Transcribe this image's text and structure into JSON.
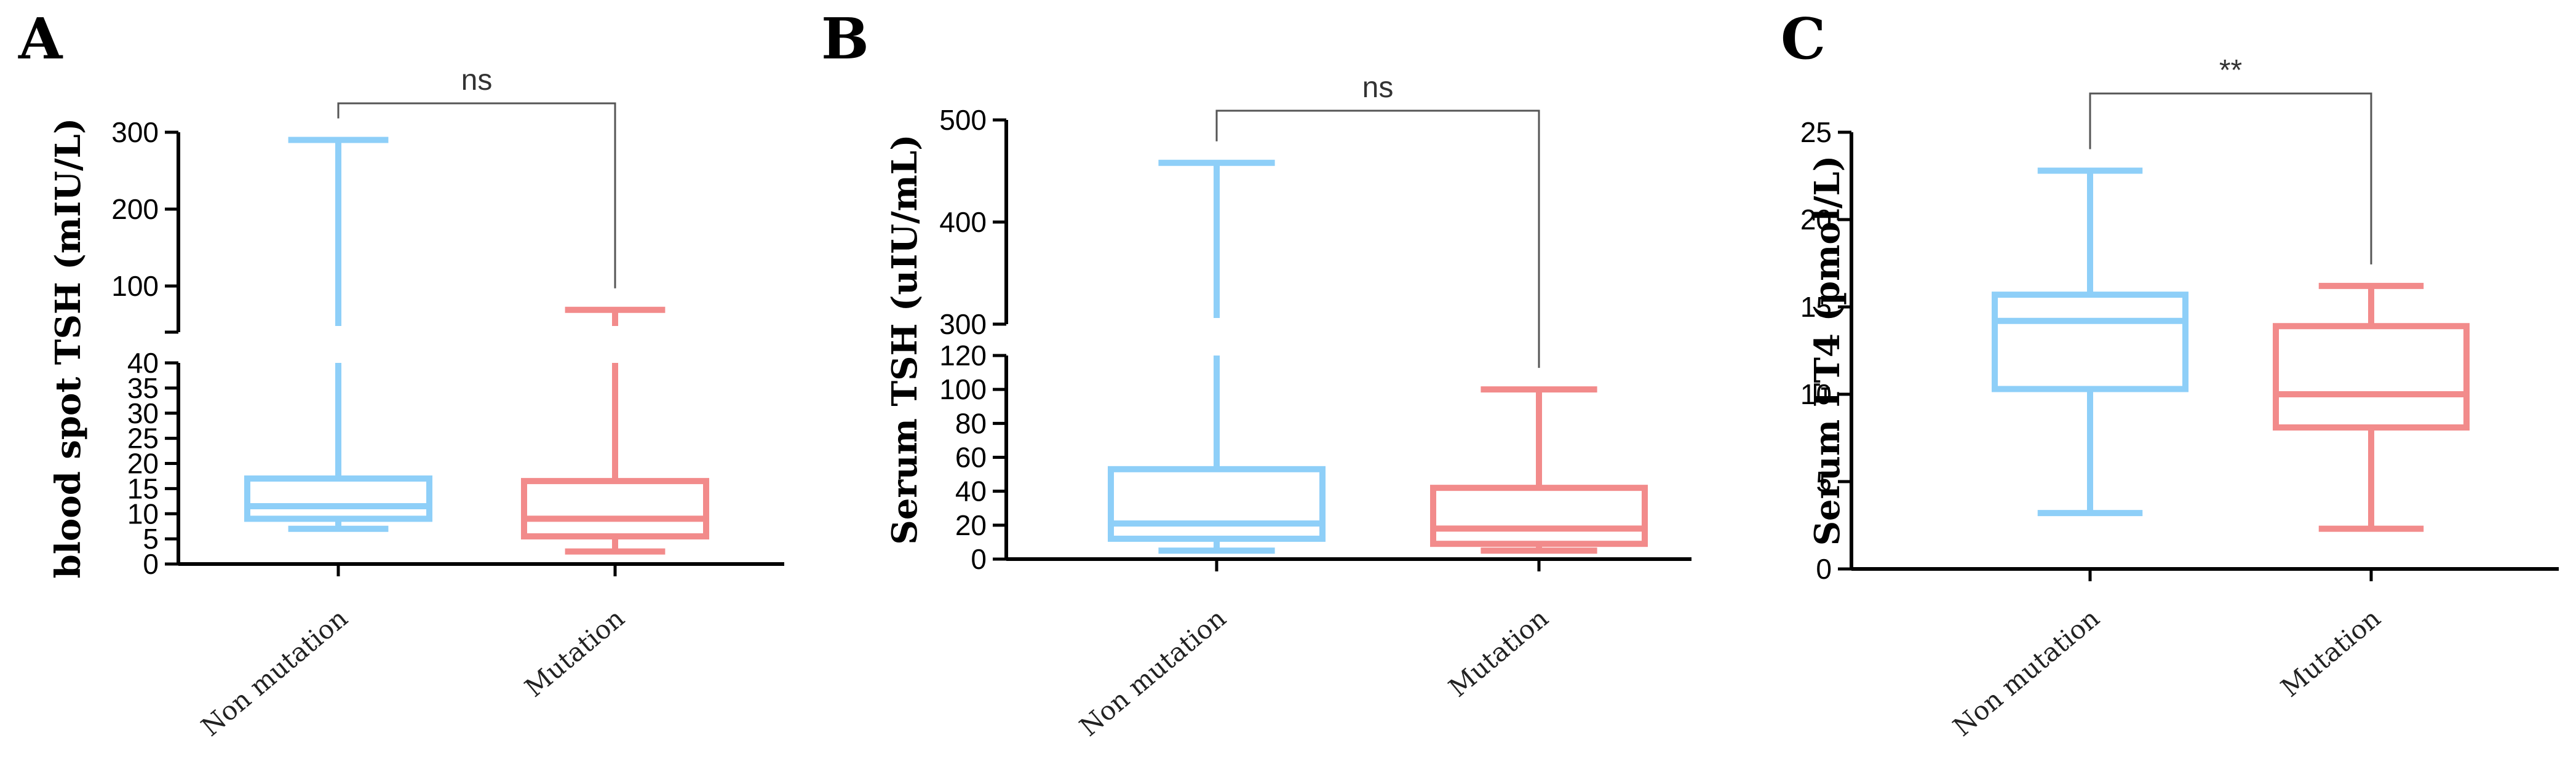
{
  "colors": {
    "non_mutation": "#8ECFF8",
    "mutation": "#F28B8B"
  },
  "chart_data": [
    {
      "panel": "A",
      "type": "box",
      "ylabel": "blood spot TSH (mIU/L)",
      "categories": [
        "Non mutation",
        "Mutation"
      ],
      "axis_break": true,
      "lower_range": [
        0,
        40
      ],
      "lower_ticks": [
        0,
        5,
        10,
        15,
        20,
        25,
        30,
        35,
        40
      ],
      "upper_range": [
        40,
        300
      ],
      "upper_ticks": [
        100,
        200,
        300
      ],
      "boxes": [
        {
          "name": "Non mutation",
          "min": 7,
          "q1": 9,
          "median": 11.5,
          "q3": 17,
          "max": 290
        },
        {
          "name": "Mutation",
          "min": 2.5,
          "q1": 5.5,
          "median": 9,
          "q3": 16.5,
          "max": 69
        }
      ],
      "significance": "ns"
    },
    {
      "panel": "B",
      "type": "box",
      "ylabel": "Serum TSH (uIU/mL)",
      "categories": [
        "Non mutation",
        "Mutation"
      ],
      "axis_break": true,
      "lower_range": [
        0,
        120
      ],
      "lower_ticks": [
        0,
        20,
        40,
        60,
        80,
        100,
        120
      ],
      "upper_range": [
        300,
        500
      ],
      "upper_ticks": [
        300,
        400,
        500
      ],
      "boxes": [
        {
          "name": "Non mutation",
          "min": 5,
          "q1": 12,
          "median": 21,
          "q3": 53,
          "max": 458
        },
        {
          "name": "Mutation",
          "min": 5,
          "q1": 9,
          "median": 18,
          "q3": 42,
          "max": 100
        }
      ],
      "significance": "ns"
    },
    {
      "panel": "C",
      "type": "box",
      "ylabel": "Serum FT4 (pmol/L)",
      "categories": [
        "Non mutation",
        "Mutation"
      ],
      "axis_break": false,
      "range": [
        0,
        25
      ],
      "ticks": [
        0,
        5,
        10,
        15,
        20,
        25
      ],
      "boxes": [
        {
          "name": "Non mutation",
          "min": 3.2,
          "q1": 10.3,
          "median": 14.2,
          "q3": 15.7,
          "max": 22.8
        },
        {
          "name": "Mutation",
          "min": 2.3,
          "q1": 8.1,
          "median": 10,
          "q3": 13.9,
          "max": 16.2
        }
      ],
      "significance": "**"
    }
  ]
}
